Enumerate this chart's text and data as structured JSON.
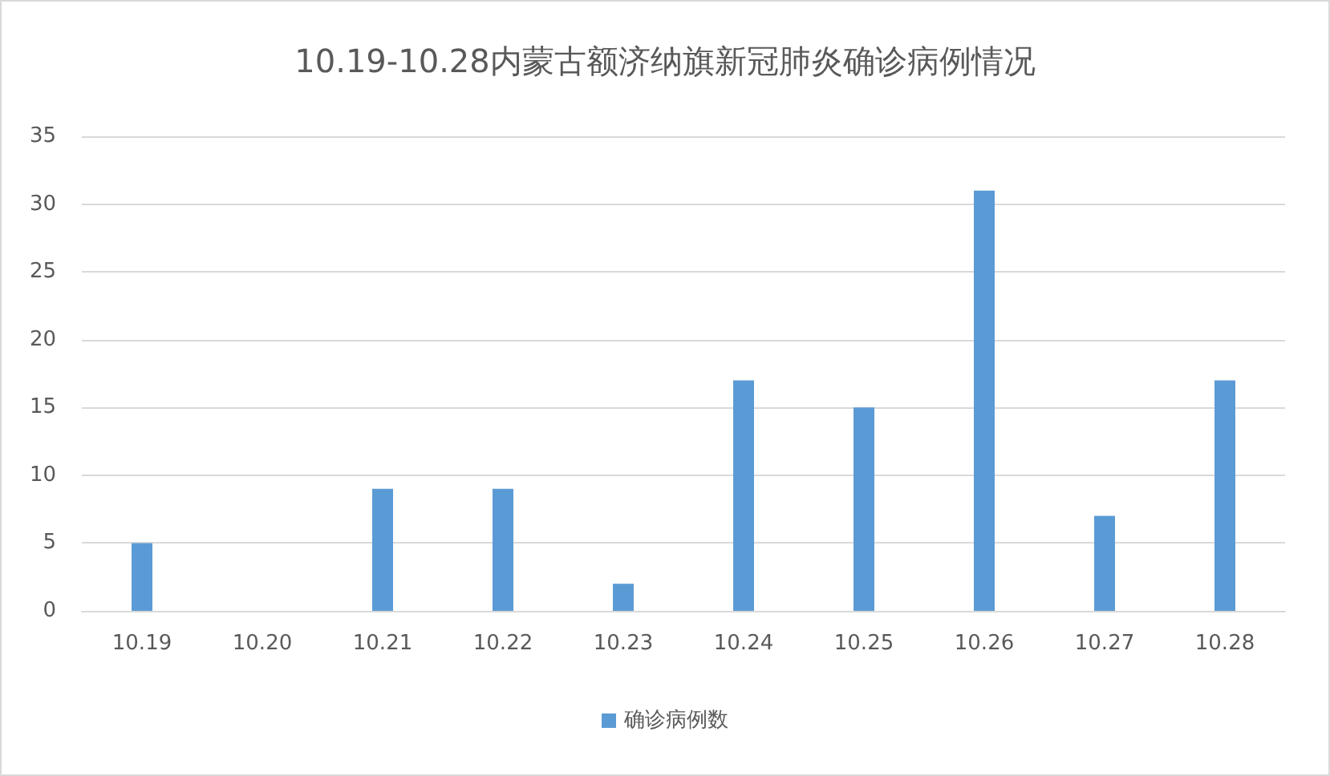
{
  "chart_data": {
    "type": "bar",
    "title": "10.19-10.28内蒙古额济纳旗新冠肺炎确诊病例情况",
    "categories": [
      "10.19",
      "10.20",
      "10.21",
      "10.22",
      "10.23",
      "10.24",
      "10.25",
      "10.26",
      "10.27",
      "10.28"
    ],
    "series": [
      {
        "name": "确诊病例数",
        "color": "#5b9bd5",
        "values": [
          5,
          0,
          9,
          9,
          2,
          17,
          15,
          31,
          7,
          17
        ]
      }
    ],
    "ylim": [
      0,
      35
    ],
    "yticks": [
      0,
      5,
      10,
      15,
      20,
      25,
      30,
      35
    ],
    "grid": "y",
    "legend": "bottom"
  }
}
